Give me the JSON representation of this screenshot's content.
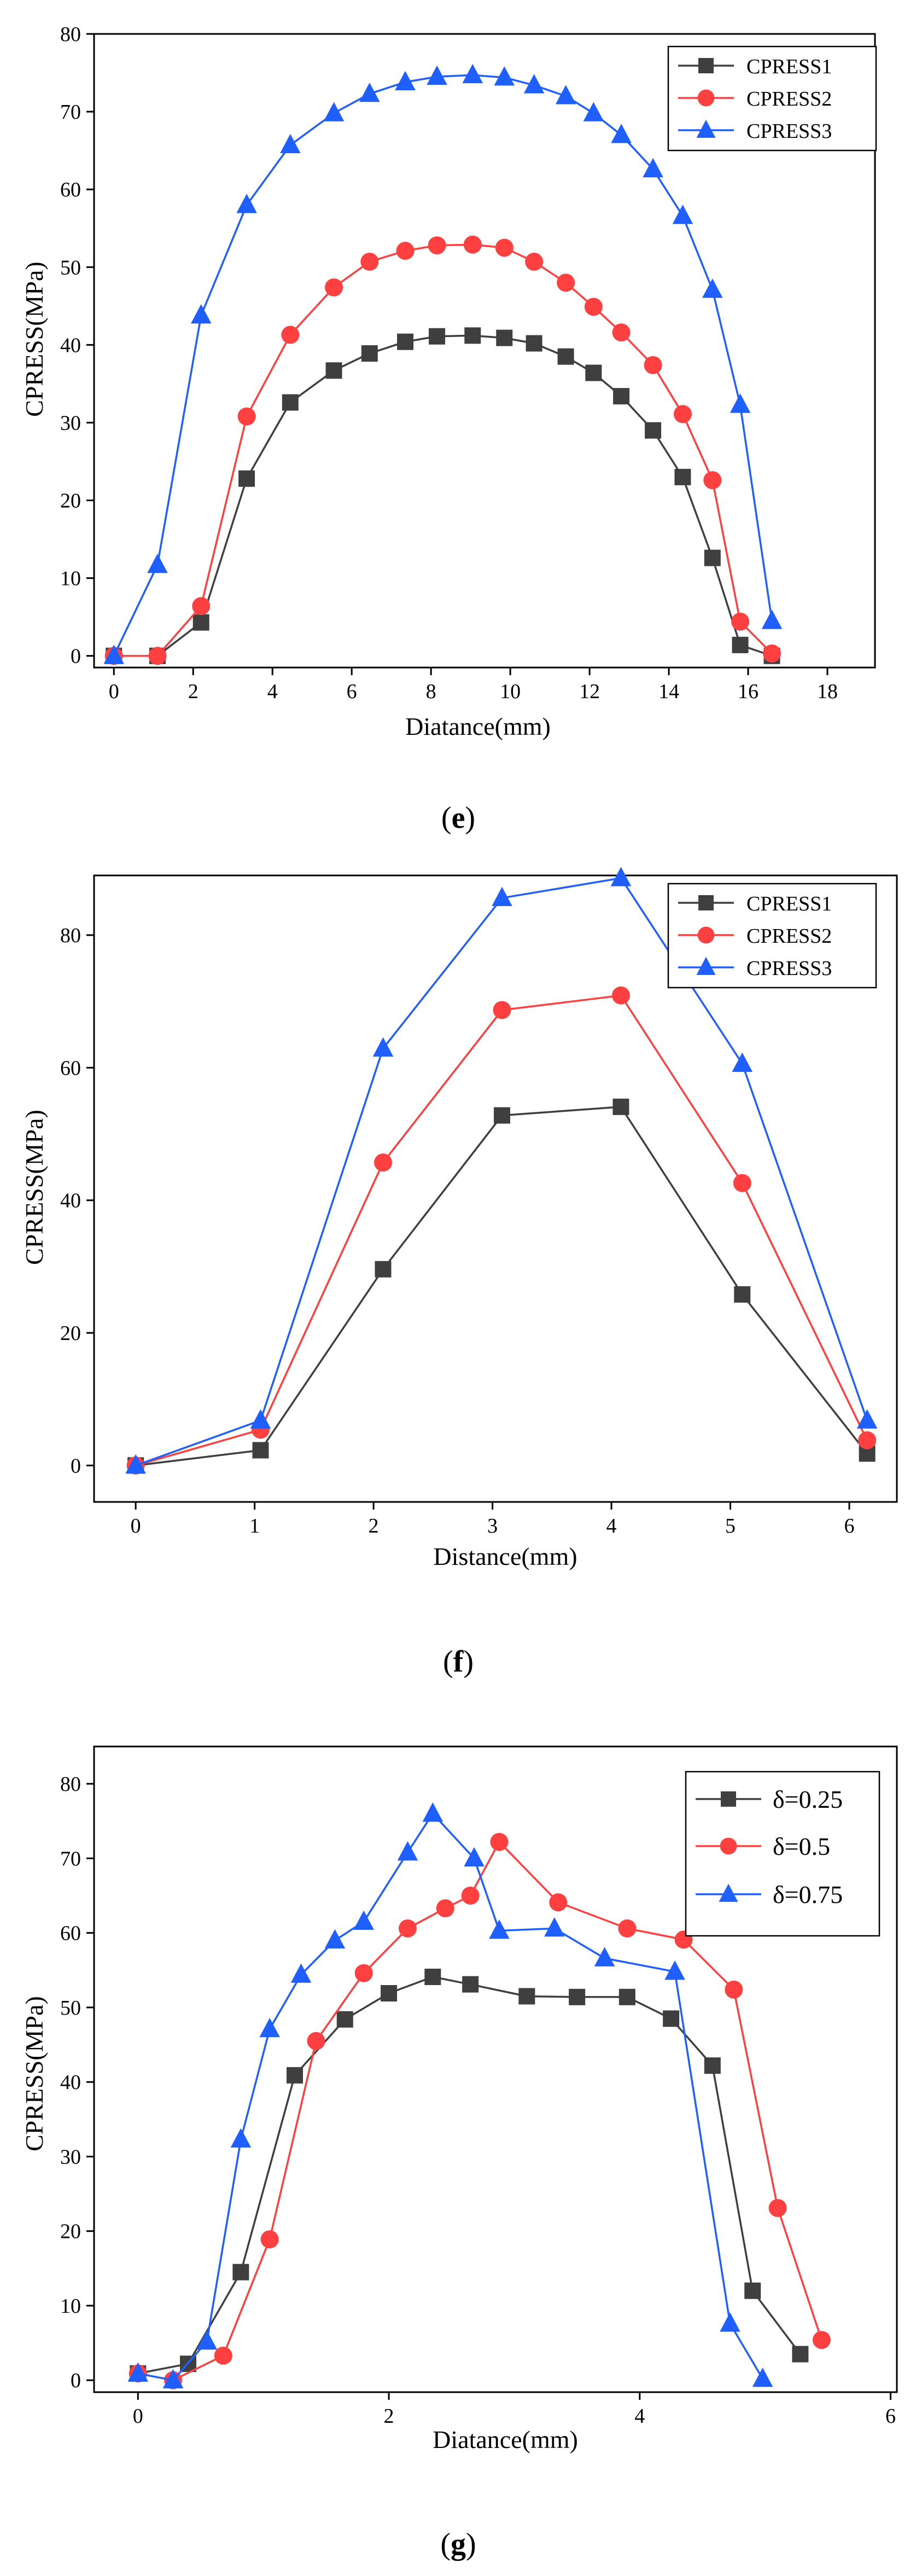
{
  "chart_data": [
    {
      "panel_label": "e",
      "type": "line",
      "xlabel": "Diatance(mm)",
      "ylabel": "CPRESS(MPa)",
      "xlim": [
        -0.5,
        19.2
      ],
      "ylim": [
        -1.5,
        80
      ],
      "xticks": [
        0,
        2,
        4,
        6,
        8,
        10,
        12,
        14,
        16,
        18
      ],
      "yticks": [
        0,
        10,
        20,
        30,
        40,
        50,
        60,
        70,
        80
      ],
      "legend_position": "top-right",
      "series": [
        {
          "name": "CPRESS1",
          "color": "#3f3f3f",
          "marker": "square",
          "x": [
            0,
            1.1,
            2.2,
            3.35,
            4.45,
            5.55,
            6.45,
            7.35,
            8.15,
            9.05,
            9.85,
            10.6,
            11.4,
            12.1,
            12.8,
            13.6,
            14.35,
            15.1,
            15.8,
            16.6
          ],
          "y": [
            0,
            0,
            4.3,
            22.8,
            32.6,
            36.7,
            38.9,
            40.4,
            41.1,
            41.2,
            40.9,
            40.2,
            38.5,
            36.4,
            33.4,
            29.0,
            23.0,
            12.6,
            1.4,
            0
          ]
        },
        {
          "name": "CPRESS2",
          "color": "#ff4040",
          "marker": "circle",
          "x": [
            0,
            1.1,
            2.2,
            3.35,
            4.45,
            5.55,
            6.45,
            7.35,
            8.15,
            9.05,
            9.85,
            10.6,
            11.4,
            12.1,
            12.8,
            13.6,
            14.35,
            15.1,
            15.8,
            16.6
          ],
          "y": [
            0,
            0,
            6.4,
            30.8,
            41.3,
            47.4,
            50.7,
            52.1,
            52.8,
            52.9,
            52.5,
            50.7,
            48.0,
            44.9,
            41.6,
            37.4,
            31.1,
            22.6,
            4.4,
            0.3
          ]
        },
        {
          "name": "CPRESS3",
          "color": "#1f5fff",
          "marker": "triangle",
          "x": [
            0,
            1.1,
            2.2,
            3.35,
            4.45,
            5.55,
            6.45,
            7.35,
            8.15,
            9.05,
            9.85,
            10.6,
            11.4,
            12.1,
            12.8,
            13.6,
            14.35,
            15.1,
            15.8,
            16.6
          ],
          "y": [
            0,
            11.7,
            43.8,
            58.0,
            65.7,
            69.8,
            72.3,
            73.8,
            74.5,
            74.7,
            74.4,
            73.4,
            72.0,
            69.8,
            67.0,
            62.6,
            56.6,
            47.1,
            32.3,
            4.5
          ]
        }
      ]
    },
    {
      "panel_label": "f",
      "type": "line",
      "xlabel": "Distance(mm)",
      "ylabel": "CPRESS(MPa)",
      "xlim": [
        -0.35,
        6.4
      ],
      "ylim": [
        -5.5,
        89
      ],
      "xticks": [
        0,
        1,
        2,
        3,
        4,
        5,
        6
      ],
      "yticks": [
        0,
        20,
        40,
        60,
        80
      ],
      "legend_position": "top-right",
      "series": [
        {
          "name": "CPRESS1",
          "color": "#3f3f3f",
          "marker": "square",
          "x": [
            0,
            1.05,
            2.08,
            3.08,
            4.08,
            5.1,
            6.15
          ],
          "y": [
            0,
            2.3,
            29.6,
            52.8,
            54.1,
            25.8,
            1.8
          ]
        },
        {
          "name": "CPRESS2",
          "color": "#ff4040",
          "marker": "circle",
          "x": [
            0,
            1.05,
            2.08,
            3.08,
            4.08,
            5.1,
            6.15
          ],
          "y": [
            0,
            5.4,
            45.7,
            68.7,
            70.9,
            42.6,
            3.8
          ]
        },
        {
          "name": "CPRESS3",
          "color": "#1f5fff",
          "marker": "triangle",
          "x": [
            0,
            1.05,
            2.08,
            3.08,
            4.08,
            5.1,
            6.15
          ],
          "y": [
            0,
            6.8,
            62.9,
            85.6,
            88.6,
            60.6,
            6.8
          ]
        }
      ]
    },
    {
      "panel_label": "g",
      "type": "line",
      "xlabel": "Diatance(mm)",
      "ylabel": "CPRESS(MPa)",
      "xlim": [
        -0.35,
        6.05
      ],
      "ylim": [
        -1.6,
        85
      ],
      "xticks": [
        0,
        2,
        4,
        6
      ],
      "yticks": [
        0,
        10,
        20,
        30,
        40,
        50,
        60,
        70,
        80
      ],
      "legend_position": "top-right",
      "series": [
        {
          "name": "δ=0.25",
          "color": "#3f3f3f",
          "marker": "square",
          "x": [
            0,
            0.4,
            0.82,
            1.25,
            1.65,
            2.0,
            2.35,
            2.65,
            3.1,
            3.5,
            3.9,
            4.25,
            4.58,
            4.9,
            5.28
          ],
          "y": [
            0.9,
            2.2,
            14.5,
            40.9,
            48.4,
            51.9,
            54.1,
            53.1,
            51.5,
            51.4,
            51.4,
            48.5,
            42.2,
            12.0,
            3.5
          ]
        },
        {
          "name": "δ=0.5",
          "color": "#ff4040",
          "marker": "circle",
          "x": [
            0,
            0.28,
            0.68,
            1.05,
            1.42,
            1.8,
            2.15,
            2.45,
            2.65,
            2.88,
            3.35,
            3.9,
            4.35,
            4.75,
            5.1,
            5.45
          ],
          "y": [
            0.9,
            0,
            3.3,
            18.9,
            45.5,
            54.6,
            60.6,
            63.3,
            65.0,
            72.2,
            64.1,
            60.6,
            59.1,
            52.4,
            23.1,
            5.4
          ]
        },
        {
          "name": "δ=0.75",
          "color": "#1f5fff",
          "marker": "triangle",
          "x": [
            0,
            0.28,
            0.55,
            0.82,
            1.05,
            1.3,
            1.57,
            1.8,
            2.15,
            2.35,
            2.68,
            2.88,
            3.32,
            3.72,
            4.28,
            4.72,
            4.98
          ],
          "y": [
            0.9,
            0,
            5.2,
            32.3,
            47.1,
            54.4,
            59.0,
            61.5,
            70.8,
            76.0,
            70.0,
            60.3,
            60.6,
            56.6,
            54.8,
            7.6,
            0.2
          ]
        }
      ]
    }
  ]
}
